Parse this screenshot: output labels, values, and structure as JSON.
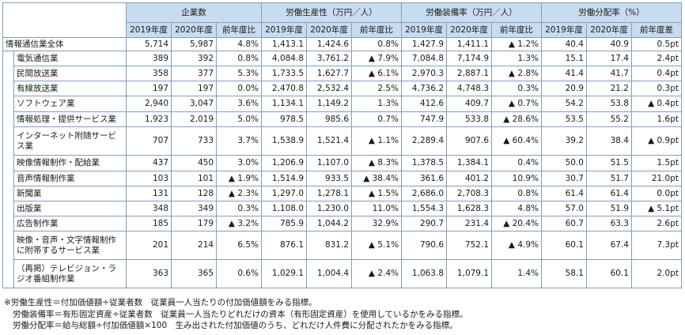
{
  "header": {
    "groups": [
      "企業数",
      "労働生産性（万円／人）",
      "労働装備率（万円／人）",
      "労働分配率（%）"
    ],
    "group0_sub": [
      "2019年度",
      "2020年度",
      "前年度比"
    ],
    "group1_sub": [
      "2019年度",
      "2020年度",
      "前年度比"
    ],
    "group2_sub": [
      "2019年度",
      "2020年度",
      "前年度比"
    ],
    "group3_sub": [
      "2019年度",
      "2020年度",
      "前年度差"
    ]
  },
  "rows": [
    {
      "name": "情報通信業全体",
      "v": [
        "5,714",
        "5,987",
        "4.8%",
        "1,413.1",
        "1,424.6",
        "0.8%",
        "1,427.9",
        "1,411.1",
        "▲ 1.2%",
        "40.4",
        "40.9",
        "0.5pt"
      ]
    },
    {
      "name": "電気通信業",
      "v": [
        "389",
        "392",
        "0.8%",
        "4,084.8",
        "3,761.2",
        "▲ 7.9%",
        "7,084.8",
        "7,174.9",
        "1.3%",
        "15.1",
        "17.4",
        "2.4pt"
      ]
    },
    {
      "name": "民間放送業",
      "v": [
        "358",
        "377",
        "5.3%",
        "1,733.5",
        "1,627.7",
        "▲ 6.1%",
        "2,970.3",
        "2,887.1",
        "▲ 2.8%",
        "41.4",
        "41.7",
        "0.4pt"
      ]
    },
    {
      "name": "有線放送業",
      "v": [
        "197",
        "197",
        "0.0%",
        "2,470.8",
        "2,532.4",
        "2.5%",
        "4,736.2",
        "4,748.3",
        "0.3%",
        "20.9",
        "21.2",
        "0.3pt"
      ]
    },
    {
      "name": "ソフトウェア業",
      "v": [
        "2,940",
        "3,047",
        "3.6%",
        "1,134.1",
        "1,149.2",
        "1.3%",
        "412.6",
        "409.7",
        "▲ 0.7%",
        "54.2",
        "53.8",
        "▲ 0.4pt"
      ]
    },
    {
      "name": "情報処理・提供サービス業",
      "v": [
        "1,923",
        "2,019",
        "5.0%",
        "978.5",
        "985.6",
        "0.7%",
        "747.9",
        "533.8",
        "▲ 28.6%",
        "53.5",
        "55.2",
        "1.6pt"
      ]
    },
    {
      "name": "インターネット附随サービス業",
      "v": [
        "707",
        "733",
        "3.7%",
        "1,538.9",
        "1,521.4",
        "▲ 1.1%",
        "2,289.4",
        "907.6",
        "▲ 60.4%",
        "39.2",
        "38.4",
        "▲ 0.9pt"
      ]
    },
    {
      "name": "映像情報制作・配給業",
      "v": [
        "437",
        "450",
        "3.0%",
        "1,206.9",
        "1,107.0",
        "▲ 8.3%",
        "1,378.5",
        "1,384.1",
        "0.4%",
        "50.0",
        "51.5",
        "1.5pt"
      ]
    },
    {
      "name": "音声情報制作業",
      "v": [
        "103",
        "101",
        "▲ 1.9%",
        "1,514.9",
        "933.5",
        "▲ 38.4%",
        "361.6",
        "401.2",
        "10.9%",
        "30.7",
        "51.7",
        "21.0pt"
      ]
    },
    {
      "name": "新聞業",
      "v": [
        "131",
        "128",
        "▲ 2.3%",
        "1,297.0",
        "1,278.1",
        "▲ 1.5%",
        "2,686.0",
        "2,708.3",
        "0.8%",
        "61.4",
        "61.4",
        "0.0pt"
      ]
    },
    {
      "name": "出版業",
      "v": [
        "348",
        "349",
        "0.3%",
        "1,108.0",
        "1,230.0",
        "11.0%",
        "1,554.3",
        "1,628.3",
        "4.8%",
        "57.0",
        "51.9",
        "▲ 5.1pt"
      ]
    },
    {
      "name": "広告制作業",
      "v": [
        "185",
        "179",
        "▲ 3.2%",
        "785.9",
        "1,044.2",
        "32.9%",
        "290.7",
        "231.4",
        "▲ 20.4%",
        "60.7",
        "63.3",
        "2.6pt"
      ]
    },
    {
      "name": "映像・音声・文字情報制作に附帯するサービス業",
      "v": [
        "201",
        "214",
        "6.5%",
        "876.1",
        "831.2",
        "▲ 5.1%",
        "790.6",
        "752.1",
        "▲ 4.9%",
        "60.1",
        "67.4",
        "7.3pt"
      ]
    },
    {
      "name": "（再掲）テレビジョン・ラジオ番組制作業",
      "v": [
        "363",
        "365",
        "0.6%",
        "1,029.1",
        "1,004.4",
        "▲ 2.4%",
        "1,063.8",
        "1,079.1",
        "1.4%",
        "58.1",
        "60.1",
        "2.0pt"
      ]
    }
  ],
  "notes": [
    "※労働生産性＝付加価値額÷従業者数　従業員一人当たりの付加価値額をみる指標。",
    "労働装備率＝有形固定資産÷従業者数　従業員一人当たりどれだけの資本（有形固定資産）を使用しているかをみる指標。",
    "労働分配率＝給与総額÷付加価値額×100　生み出された付加価値のうち、どれだけ人件費に分配されたかをみる指標。"
  ]
}
